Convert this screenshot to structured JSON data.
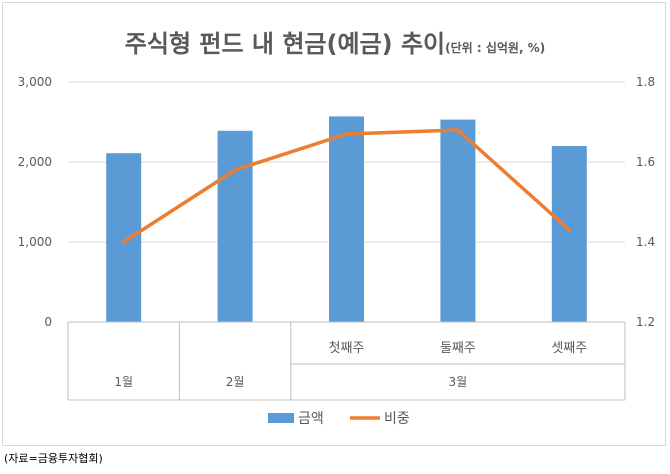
{
  "chart_data": {
    "type": "bar+line",
    "title": "주식형 펀드 내 현금(예금) 추이",
    "subtitle": "(단위 : 십억원, %)",
    "categories": [
      {
        "label": "",
        "group": "1월"
      },
      {
        "label": "",
        "group": "2월"
      },
      {
        "label": "첫째주",
        "group": "3월"
      },
      {
        "label": "둘째주",
        "group": "3월"
      },
      {
        "label": "셋째주",
        "group": "3월"
      }
    ],
    "groups": [
      {
        "label": "1월",
        "span": 1
      },
      {
        "label": "2월",
        "span": 1
      },
      {
        "label": "3월",
        "span": 3
      }
    ],
    "series": [
      {
        "name": "금액",
        "type": "bar",
        "axis": "left",
        "color": "#5b9bd5",
        "values": [
          2110,
          2390,
          2570,
          2530,
          2200
        ]
      },
      {
        "name": "비중",
        "type": "line",
        "axis": "right",
        "color": "#ed7d31",
        "values": [
          1.4,
          1.58,
          1.67,
          1.68,
          1.43
        ]
      }
    ],
    "y_left": {
      "min": 0,
      "max": 3000,
      "ticks": [
        0,
        1000,
        2000,
        3000
      ],
      "tick_labels": [
        "0",
        "1,000",
        "2,000",
        "3,000"
      ]
    },
    "y_right": {
      "min": 1.2,
      "max": 1.8,
      "ticks": [
        1.2,
        1.4,
        1.6,
        1.8
      ],
      "tick_labels": [
        "1.2",
        "1.4",
        "1.6",
        "1.8"
      ]
    },
    "grid": true,
    "legend_position": "bottom"
  },
  "source": "(자료=금융투자협회)"
}
